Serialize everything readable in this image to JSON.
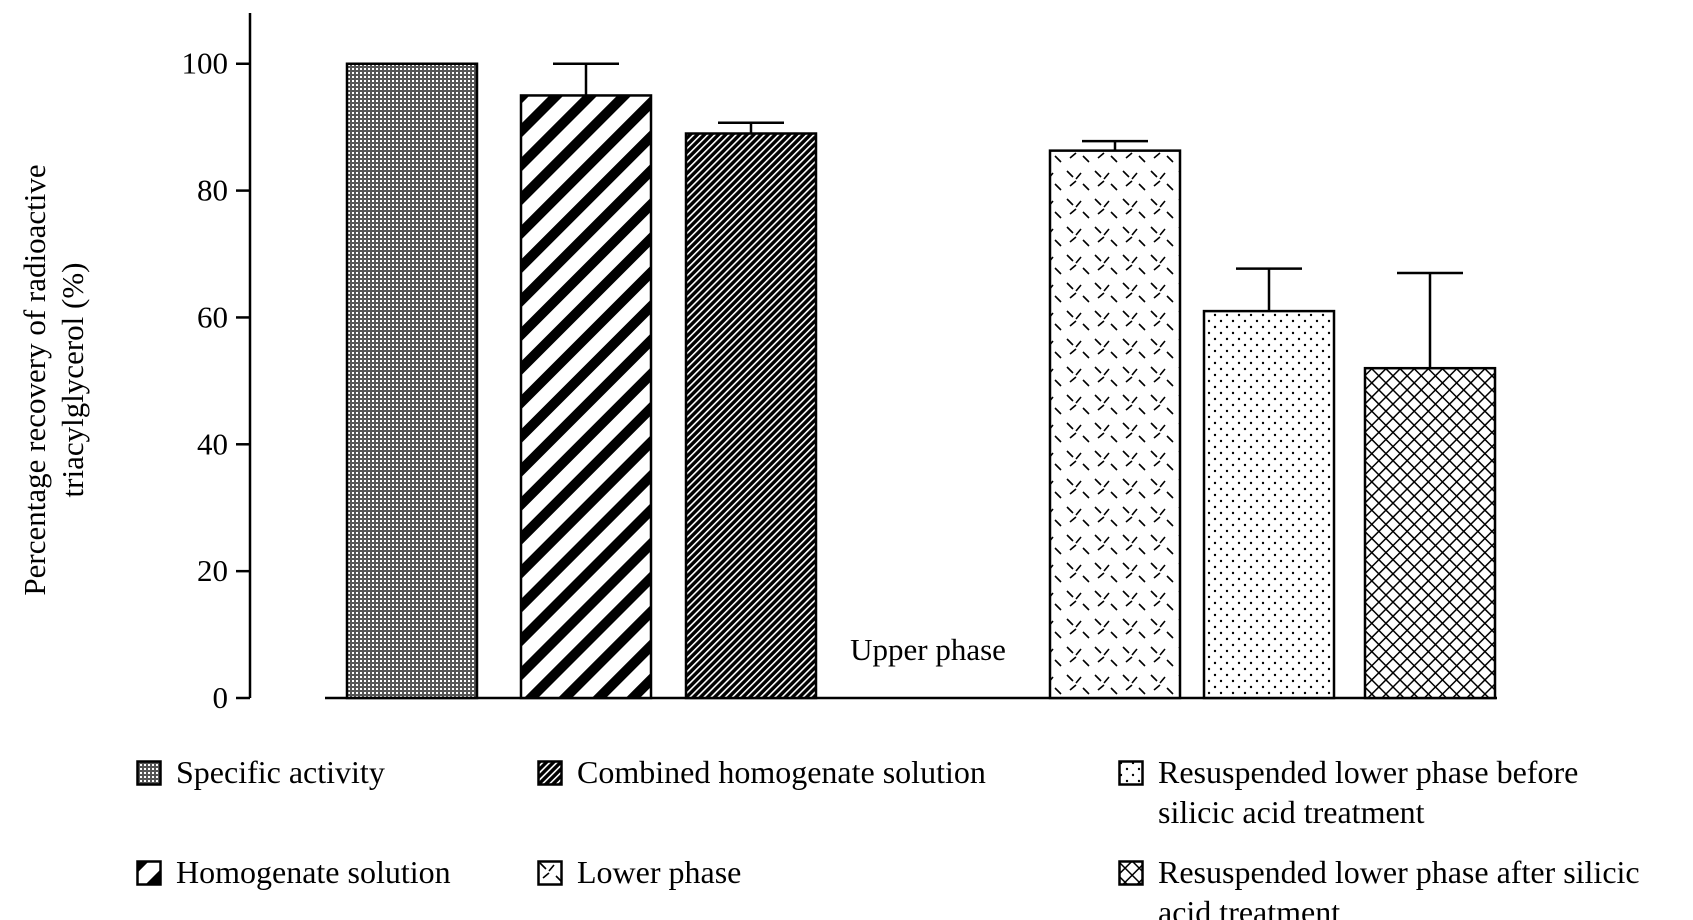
{
  "chart_data": {
    "type": "bar",
    "ylabel": [
      "Percentage recovery of radioactive",
      "triacylglycerol (%)"
    ],
    "ylim": [
      0,
      108
    ],
    "yticks": [
      0,
      20,
      40,
      60,
      80,
      100
    ],
    "series": [
      {
        "name": "Specific  activity",
        "values": [
          100
        ],
        "errors": [
          null
        ],
        "pattern": "fine-dots",
        "legend": true
      },
      {
        "name": "Homogenate solution",
        "values": [
          95
        ],
        "errors": [
          5
        ],
        "pattern": "wide-stripes",
        "legend": true
      },
      {
        "name": "Combined homogenate solution",
        "values": [
          89
        ],
        "errors": [
          1.7
        ],
        "pattern": "fine-stripes",
        "legend": true
      },
      {
        "name": "Upper phase",
        "values": [
          0
        ],
        "errors": [
          null
        ],
        "pattern": "none",
        "legend": false
      },
      {
        "name": "Lower phase",
        "values": [
          86.3
        ],
        "errors": [
          1.5
        ],
        "pattern": "dashes",
        "legend": true
      },
      {
        "name": "Resuspended lower phase before silicic acid treatment",
        "values": [
          61
        ],
        "errors": [
          6.7
        ],
        "pattern": "dots",
        "legend": true
      },
      {
        "name": "Resuspended lower phase after silicic acid treatment",
        "values": [
          52
        ],
        "errors": [
          15
        ],
        "pattern": "crosshatch",
        "legend": true
      }
    ]
  }
}
